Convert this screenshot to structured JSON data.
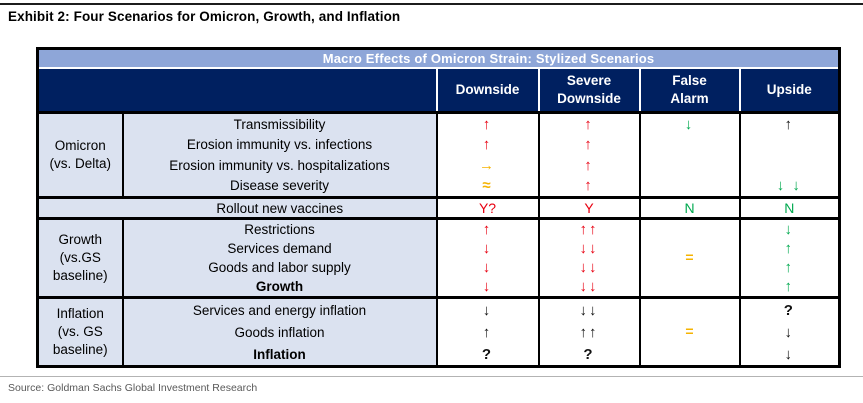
{
  "page": {
    "exhibit_title": "Exhibit 2: Four Scenarios for Omicron, Growth, and Inflation",
    "source": "Source: Goldman Sachs Global Investment Research"
  },
  "colors": {
    "navy_header": "#002060",
    "title_bar_blue": "#8ea6d8",
    "label_cell_blue": "#dbe2f0",
    "negative_red": "#e80011",
    "positive_green": "#00a94f",
    "neutral_gold": "#f5b301",
    "neutral_black": "#111111",
    "source_gray": "#595959"
  },
  "table": {
    "title": "Macro Effects of Omicron Strain: Stylized Scenarios",
    "header": {
      "scenarios": [
        "Downside",
        "Severe\nDownside",
        "False\nAlarm",
        "Upside"
      ]
    },
    "sections": [
      {
        "label": [
          "Omicron",
          "(vs. Delta)"
        ],
        "rows": [
          {
            "s": "Transmissibility"
          },
          {
            "s": "Erosion immunity vs. infections"
          },
          {
            "s": "Erosion immunity vs. hospitalizations"
          },
          {
            "s": "Disease severity"
          }
        ],
        "downside": [
          {
            "s": "↑",
            "c": "#e80011"
          },
          {
            "s": "↑",
            "c": "#e80011"
          },
          {
            "s": "→",
            "c": "#f5b301"
          },
          {
            "s": "≈",
            "c": "#f5b301"
          }
        ],
        "severe": [
          {
            "s": "↑",
            "c": "#e80011"
          },
          {
            "s": "↑",
            "c": "#e80011"
          },
          {
            "s": "↑",
            "c": "#e80011"
          },
          {
            "s": "↑",
            "c": "#e80011"
          }
        ],
        "false_alarm": [
          {
            "s": "↓",
            "c": "#00a94f"
          },
          {
            "s": ""
          },
          {
            "s": ""
          },
          {
            "s": ""
          }
        ],
        "upside": [
          {
            "s": "↑",
            "c": "#111111"
          },
          {
            "s": ""
          },
          {
            "s": ""
          },
          {
            "s": "↓ ↓",
            "c": "#00a94f"
          }
        ]
      },
      {
        "label": [
          "Growth",
          "(vs.GS",
          "baseline)"
        ],
        "rows": [
          {
            "s": "Restrictions"
          },
          {
            "s": "Services demand"
          },
          {
            "s": "Goods and labor supply"
          },
          {
            "s": "Growth",
            "b": true
          }
        ],
        "downside": [
          {
            "s": "↑",
            "c": "#e80011"
          },
          {
            "s": "↓",
            "c": "#e80011"
          },
          {
            "s": "↓",
            "c": "#e80011"
          },
          {
            "s": "↓",
            "c": "#e80011"
          }
        ],
        "severe": [
          {
            "s": "↑↑",
            "c": "#e80011"
          },
          {
            "s": "↓↓",
            "c": "#e80011"
          },
          {
            "s": "↓↓",
            "c": "#e80011"
          },
          {
            "s": "↓↓",
            "c": "#e80011"
          }
        ],
        "false_alarm_center": {
          "s": "=",
          "c": "#f5b301"
        },
        "upside": [
          {
            "s": "↓",
            "c": "#00a94f"
          },
          {
            "s": "↑",
            "c": "#00a94f"
          },
          {
            "s": "↑",
            "c": "#00a94f"
          },
          {
            "s": "↑",
            "c": "#00a94f"
          }
        ]
      },
      {
        "label": [
          "Inflation",
          "(vs. GS",
          "baseline)"
        ],
        "rows": [
          {
            "s": "Services and energy inflation"
          },
          {
            "s": "Goods inflation"
          },
          {
            "s": "Inflation",
            "b": true
          }
        ],
        "downside": [
          {
            "s": "↓",
            "c": "#111111"
          },
          {
            "s": "↑",
            "c": "#111111"
          },
          {
            "s": "?",
            "c": "#111111"
          }
        ],
        "severe": [
          {
            "s": "↓↓",
            "c": "#111111"
          },
          {
            "s": "↑↑",
            "c": "#111111"
          },
          {
            "s": "?",
            "c": "#111111"
          }
        ],
        "false_alarm_center": {
          "s": "=",
          "c": "#f5b301"
        },
        "upside": [
          {
            "s": "?",
            "c": "#111111"
          },
          {
            "s": "↓",
            "c": "#111111"
          },
          {
            "s": "↓",
            "c": "#111111"
          }
        ]
      }
    ],
    "vaccines": {
      "label": "Rollout new vaccines",
      "values": [
        {
          "s": "Y?",
          "c": "#e80011"
        },
        {
          "s": "Y",
          "c": "#e80011"
        },
        {
          "s": "N",
          "c": "#00a94f"
        },
        {
          "s": "N",
          "c": "#00a94f"
        }
      ]
    }
  }
}
